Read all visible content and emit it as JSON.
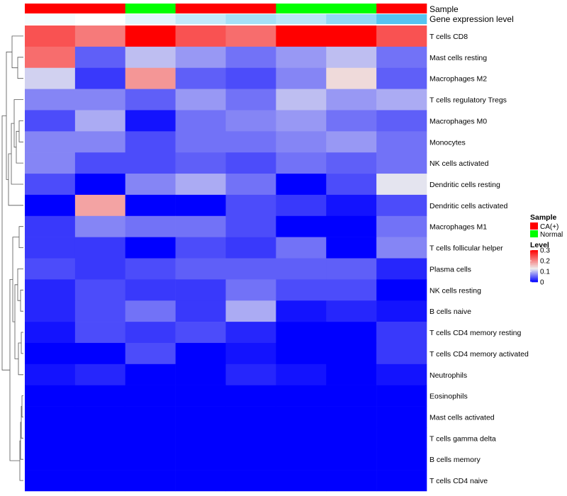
{
  "chart_data": {
    "type": "heatmap",
    "annotations": {
      "sample": {
        "label": "Sample",
        "values": [
          "CA(+)",
          "CA(+)",
          "Normal",
          "CA(+)",
          "CA(+)",
          "Normal",
          "Normal",
          "CA(+)"
        ]
      },
      "expression": {
        "label": "Gene expression level",
        "values": [
          0.16,
          0.15,
          0.18,
          0.21,
          0.24,
          0.22,
          0.26,
          0.32
        ]
      }
    },
    "rows": [
      "T cells CD8",
      "Mast cells resting",
      "Macrophages M2",
      "T cells regulatory  Tregs",
      "Macrophages M0",
      "Monocytes",
      "NK cells activated",
      "Dendritic cells resting",
      "Dendritic cells activated",
      "Macrophages M1",
      "T cells follicular helper",
      "Plasma cells",
      "NK cells resting",
      "B cells naive",
      "T cells CD4 memory resting",
      "T cells CD4 memory activated",
      "Neutrophils",
      "Eosinophils",
      "Mast cells activated",
      "T cells gamma delta",
      "B cells memory",
      "T cells CD4 naive"
    ],
    "values": [
      [
        0.24,
        0.21,
        0.3,
        0.24,
        0.22,
        0.3,
        0.3,
        0.24
      ],
      [
        0.22,
        0.05,
        0.1,
        0.08,
        0.06,
        0.08,
        0.1,
        0.06
      ],
      [
        0.11,
        0.03,
        0.19,
        0.05,
        0.04,
        0.07,
        0.14,
        0.05
      ],
      [
        0.07,
        0.07,
        0.05,
        0.08,
        0.06,
        0.1,
        0.08,
        0.09
      ],
      [
        0.04,
        0.09,
        0.01,
        0.06,
        0.07,
        0.08,
        0.06,
        0.05
      ],
      [
        0.07,
        0.07,
        0.04,
        0.06,
        0.06,
        0.07,
        0.08,
        0.06
      ],
      [
        0.07,
        0.04,
        0.04,
        0.05,
        0.04,
        0.06,
        0.05,
        0.06
      ],
      [
        0.04,
        0.0,
        0.07,
        0.09,
        0.06,
        0.0,
        0.04,
        0.12
      ],
      [
        0.0,
        0.18,
        0.0,
        0.0,
        0.04,
        0.03,
        0.01,
        0.04
      ],
      [
        0.03,
        0.07,
        0.06,
        0.06,
        0.04,
        0.0,
        0.0,
        0.06
      ],
      [
        0.03,
        0.03,
        0.0,
        0.04,
        0.03,
        0.06,
        0.0,
        0.07
      ],
      [
        0.04,
        0.03,
        0.04,
        0.05,
        0.05,
        0.05,
        0.05,
        0.02
      ],
      [
        0.02,
        0.04,
        0.03,
        0.03,
        0.06,
        0.04,
        0.04,
        0.0
      ],
      [
        0.02,
        0.04,
        0.06,
        0.03,
        0.09,
        0.01,
        0.02,
        0.01
      ],
      [
        0.01,
        0.04,
        0.03,
        0.04,
        0.02,
        0.0,
        0.0,
        0.03
      ],
      [
        0.0,
        0.0,
        0.04,
        0.0,
        0.01,
        0.0,
        0.0,
        0.03
      ],
      [
        0.01,
        0.02,
        0.0,
        0.0,
        0.02,
        0.01,
        0.0,
        0.01
      ],
      [
        0.0,
        0.0,
        0.0,
        0.0,
        0.0,
        0.0,
        0.0,
        0.0
      ],
      [
        0.0,
        0.0,
        0.0,
        0.0,
        0.0,
        0.0,
        0.0,
        0.0
      ],
      [
        0.0,
        0.0,
        0.0,
        0.0,
        0.0,
        0.0,
        0.0,
        0.0
      ],
      [
        0.0,
        0.0,
        0.0,
        0.0,
        0.0,
        0.0,
        0.0,
        0.0
      ],
      [
        0.0,
        0.0,
        0.0,
        0.0,
        0.0,
        0.0,
        0.0,
        0.0
      ]
    ],
    "color_scale": {
      "low": "#0000ff",
      "mid": "#eeeeee",
      "high": "#ff0000",
      "min": 0,
      "mid_value": 0.125,
      "max": 0.3
    },
    "sample_colors": {
      "CA(+)": "#ff0000",
      "Normal": "#00ff00"
    },
    "expression_colors": {
      "low": "#ffffff",
      "high": "#55c4f0"
    },
    "legend": {
      "sample_title": "Sample",
      "sample_items": [
        "CA(+)",
        "Normal"
      ],
      "level_title": "Level",
      "level_ticks": [
        "0.3",
        "0.2",
        "0.1",
        "0"
      ],
      "level_tick_values": [
        0.3,
        0.2,
        0.1,
        0
      ],
      "position": "right"
    }
  }
}
